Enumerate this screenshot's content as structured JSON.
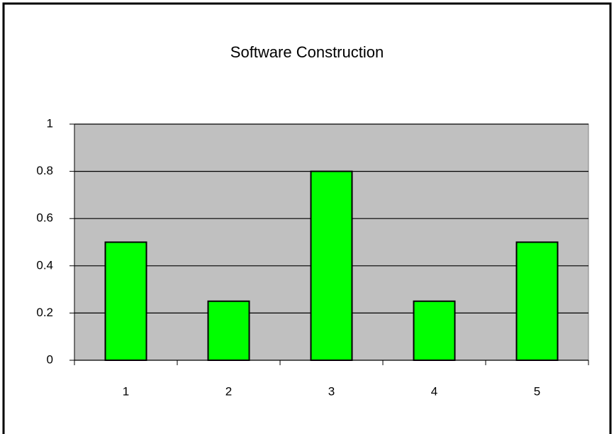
{
  "chart_data": {
    "type": "bar",
    "title": "Software Construction",
    "categories": [
      "1",
      "2",
      "3",
      "4",
      "5"
    ],
    "values": [
      0.5,
      0.25,
      0.8,
      0.25,
      0.5
    ],
    "color": "#00ff00",
    "ylim": [
      0,
      1
    ],
    "yticks": [
      0,
      0.2,
      0.4,
      0.6,
      0.8,
      1
    ],
    "grid": true
  }
}
